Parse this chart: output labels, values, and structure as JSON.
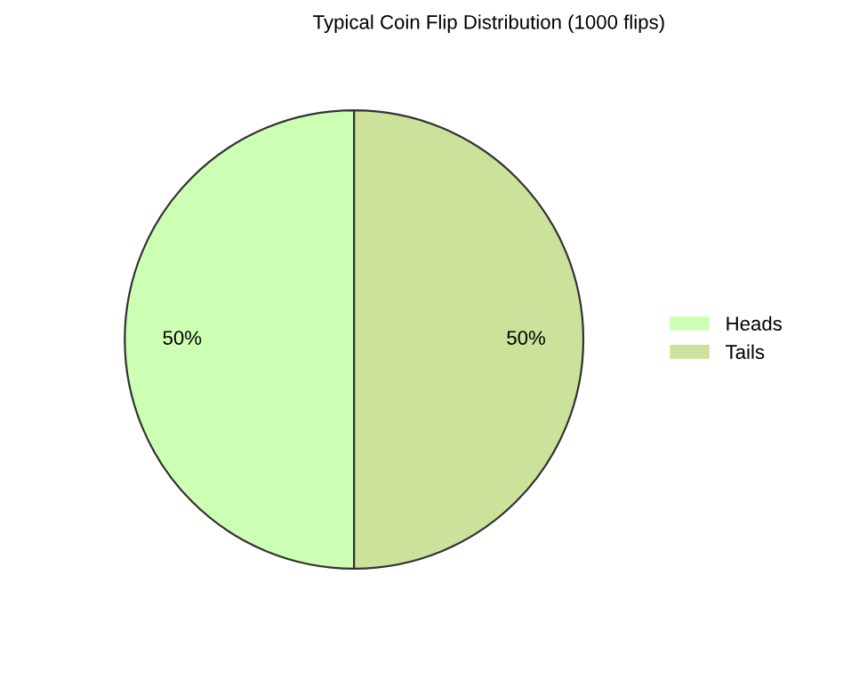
{
  "chart_data": {
    "type": "pie",
    "title": "Typical Coin Flip Distribution (1000 flips)",
    "categories": [
      "Heads",
      "Tails"
    ],
    "values": [
      50,
      50
    ],
    "colors": [
      "#ccffb3",
      "#cce29a"
    ],
    "value_labels": [
      "50%",
      "50%"
    ],
    "legend": "right"
  }
}
